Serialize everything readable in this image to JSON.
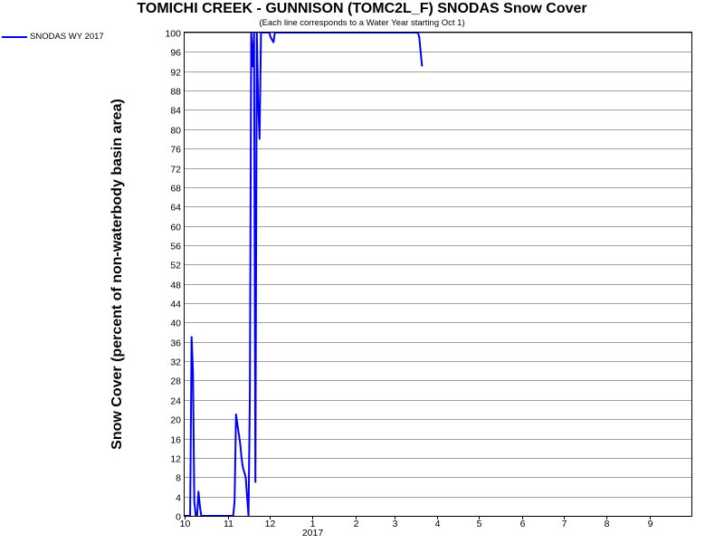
{
  "chart_data": {
    "type": "line",
    "title": "TOMICHI CREEK - GUNNISON (TOMC2L_F) SNODAS Snow Cover",
    "subtitle": "(Each line corresponds to a Water Year starting Oct 1)",
    "xlabel": "",
    "ylabel": "Snow Cover (percent of non-waterbody basin area)",
    "ylim": [
      0,
      100
    ],
    "y_ticks": [
      "0",
      "4",
      "8",
      "12",
      "16",
      "20",
      "24",
      "28",
      "32",
      "36",
      "40",
      "44",
      "48",
      "52",
      "56",
      "60",
      "64",
      "68",
      "72",
      "76",
      "80",
      "84",
      "88",
      "92",
      "96",
      "100"
    ],
    "x_ticks": [
      {
        "label": "10",
        "date": "2016-10-01"
      },
      {
        "label": "11",
        "date": "2016-11-01"
      },
      {
        "label": "12",
        "date": "2016-12-01"
      },
      {
        "label": "1",
        "date": "2017-01-01"
      },
      {
        "label": "2",
        "date": "2017-02-01"
      },
      {
        "label": "3",
        "date": "2017-03-01"
      },
      {
        "label": "4",
        "date": "2017-04-01"
      },
      {
        "label": "5",
        "date": "2017-05-01"
      },
      {
        "label": "6",
        "date": "2017-06-01"
      },
      {
        "label": "7",
        "date": "2017-07-01"
      },
      {
        "label": "8",
        "date": "2017-08-01"
      },
      {
        "label": "9",
        "date": "2017-09-01"
      }
    ],
    "x_year_label": "2017",
    "x_range": [
      "2016-10-01",
      "2017-09-30"
    ],
    "grid": "horizontal",
    "legend_position": "top-left",
    "series": [
      {
        "name": "SNODAS WY 2017",
        "color": "#0000ff",
        "points": [
          [
            "2016-10-01",
            0
          ],
          [
            "2016-10-05",
            0
          ],
          [
            "2016-10-06",
            37
          ],
          [
            "2016-10-07",
            30
          ],
          [
            "2016-10-08",
            3
          ],
          [
            "2016-10-09",
            0
          ],
          [
            "2016-10-10",
            0
          ],
          [
            "2016-10-11",
            5
          ],
          [
            "2016-10-12",
            2
          ],
          [
            "2016-10-13",
            0
          ],
          [
            "2016-10-20",
            0
          ],
          [
            "2016-11-01",
            0
          ],
          [
            "2016-11-05",
            0
          ],
          [
            "2016-11-06",
            3
          ],
          [
            "2016-11-07",
            21
          ],
          [
            "2016-11-08",
            19
          ],
          [
            "2016-11-09",
            17
          ],
          [
            "2016-11-10",
            15
          ],
          [
            "2016-11-11",
            12
          ],
          [
            "2016-11-12",
            10
          ],
          [
            "2016-11-13",
            9
          ],
          [
            "2016-11-14",
            8
          ],
          [
            "2016-11-15",
            4
          ],
          [
            "2016-11-16",
            0
          ],
          [
            "2016-11-17",
            25
          ],
          [
            "2016-11-18",
            100
          ],
          [
            "2016-11-19",
            93
          ],
          [
            "2016-11-20",
            100
          ],
          [
            "2016-11-21",
            7
          ],
          [
            "2016-11-22",
            100
          ],
          [
            "2016-11-23",
            85
          ],
          [
            "2016-11-24",
            78
          ],
          [
            "2016-11-25",
            100
          ],
          [
            "2016-11-26",
            100
          ],
          [
            "2016-11-27",
            100
          ],
          [
            "2016-11-28",
            100
          ],
          [
            "2016-11-30",
            100
          ],
          [
            "2016-12-01",
            100
          ],
          [
            "2016-12-02",
            99
          ],
          [
            "2016-12-04",
            98
          ],
          [
            "2016-12-05",
            100
          ],
          [
            "2016-12-07",
            100
          ],
          [
            "2016-12-10",
            100
          ],
          [
            "2016-12-20",
            100
          ],
          [
            "2017-01-10",
            100
          ],
          [
            "2017-02-10",
            100
          ],
          [
            "2017-03-10",
            100
          ],
          [
            "2017-03-18",
            100
          ],
          [
            "2017-03-19",
            99
          ],
          [
            "2017-03-20",
            96
          ],
          [
            "2017-03-21",
            93
          ]
        ]
      }
    ]
  }
}
